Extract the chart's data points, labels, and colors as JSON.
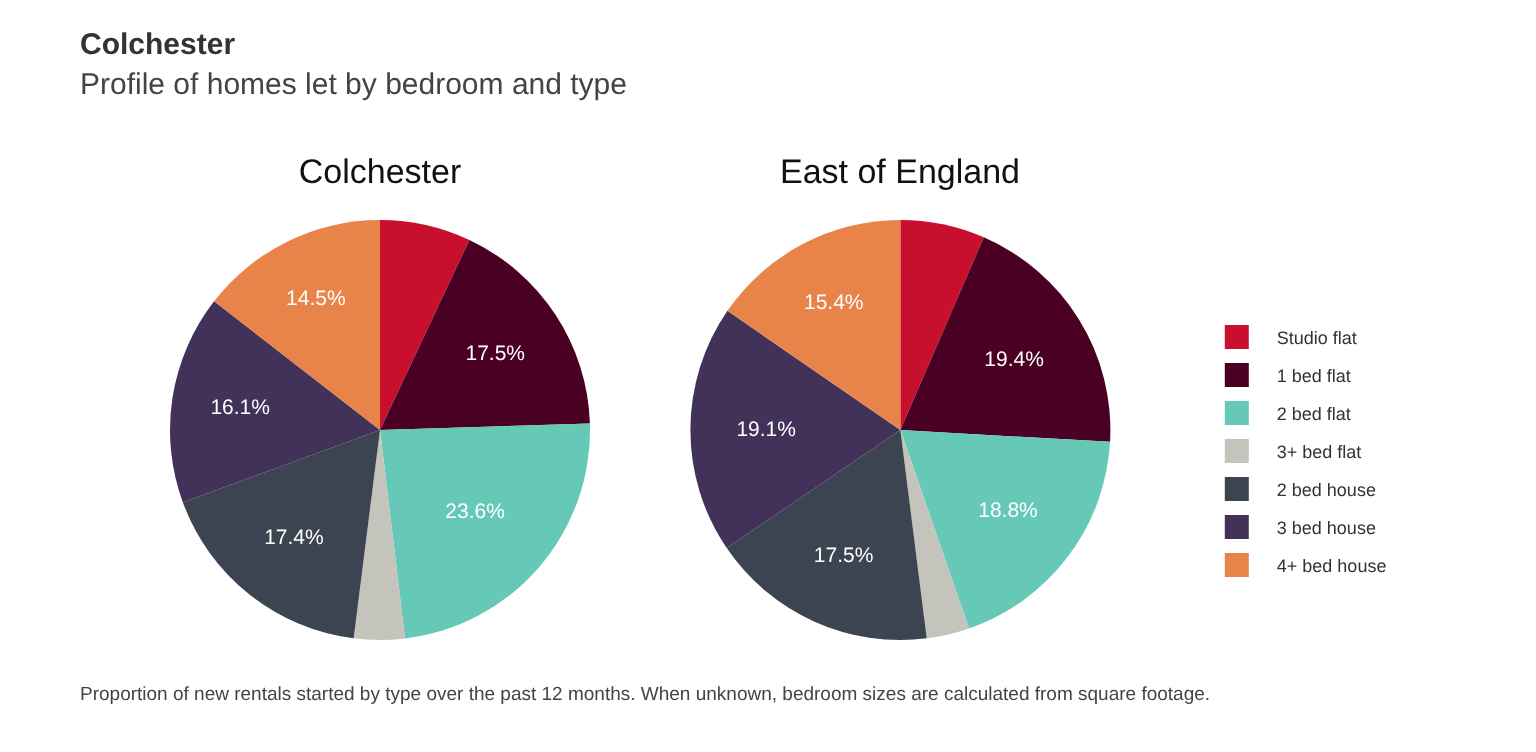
{
  "chart_data": [
    {
      "type": "other",
      "title": "Colchester",
      "subtitle": "Profile of homes let by bedroom and type",
      "annotations": [
        "Proportion of new rentals started by type over the past 12 months. When unknown, bedroom sizes are calculated from square footage."
      ]
    },
    {
      "type": "pie",
      "title": "Colchester",
      "categories": [
        null,
        null,
        null,
        null,
        null,
        null,
        null
      ],
      "values": [
        7.0,
        17.5,
        23.6,
        3.9,
        17.4,
        16.1,
        14.5
      ],
      "value_labels": [
        null,
        "17.5%",
        "23.6%",
        null,
        "17.4%",
        "16.1%",
        "14.5%"
      ],
      "colors": [
        "#c8102e",
        "#4a0022",
        "#66c9b8",
        "#c4c4bc",
        "#3b4450",
        "#42325a",
        "#e8834a"
      ],
      "legend": false
    },
    {
      "type": "pie",
      "title": "East of England",
      "categories": [
        "Studio flat",
        "1 bed flat",
        "2 bed flat",
        "3+ bed flat",
        "2 bed house",
        "3 bed house",
        "4+ bed house"
      ],
      "values": [
        6.5,
        19.4,
        18.8,
        3.3,
        17.5,
        19.1,
        15.4
      ],
      "value_labels": [
        null,
        "19.4%",
        "18.8%",
        null,
        "17.5%",
        "19.1%",
        "15.4%"
      ],
      "colors": [
        "#c8102e",
        "#4a0022",
        "#66c9b8",
        "#c4c4bc",
        "#3b4450",
        "#42325a",
        "#e8834a"
      ],
      "legend": "right"
    }
  ]
}
